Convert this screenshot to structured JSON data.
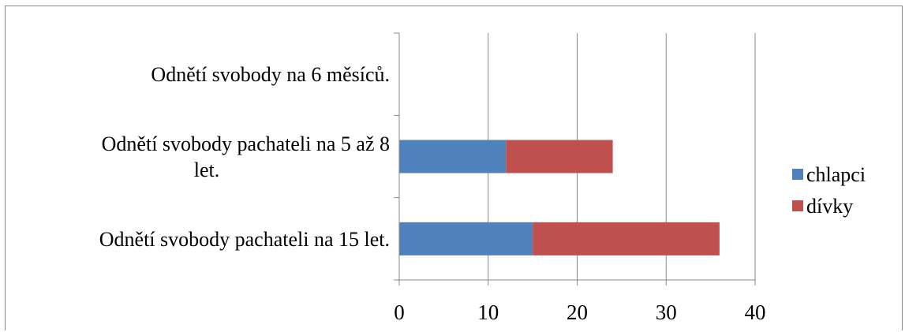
{
  "chart_data": {
    "type": "bar",
    "orientation": "horizontal",
    "stacked": true,
    "categories": [
      [
        "Odnětí svobody pachateli na 15 let."
      ],
      [
        "Odnětí svobody pachateli na 5 až 8",
        "let."
      ],
      [
        "Odnětí svobody na 6 měsíců."
      ]
    ],
    "series": [
      {
        "name": "chlapci",
        "values": [
          15,
          12,
          0
        ],
        "color": "#4F81BD"
      },
      {
        "name": "dívky",
        "values": [
          21,
          12,
          0
        ],
        "color": "#C0504D"
      }
    ],
    "xlim": [
      0,
      40
    ],
    "xticks": [
      "0",
      "10",
      "20",
      "30",
      "40"
    ],
    "grid": "vertical",
    "legend_position": "right",
    "title": "",
    "xlabel": "",
    "ylabel": ""
  }
}
